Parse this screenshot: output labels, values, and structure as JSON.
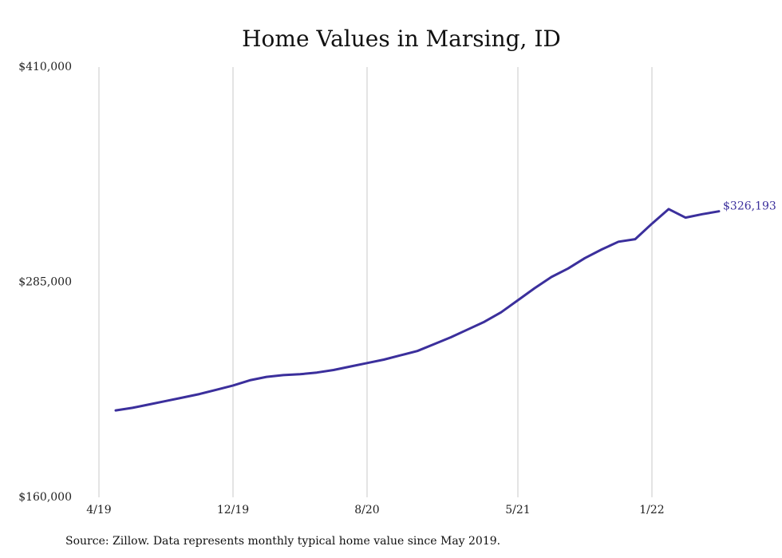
{
  "chart_data": {
    "type": "line",
    "title": "Home Values in Marsing, ID",
    "xlabel": "",
    "ylabel": "",
    "ylim": [
      160000,
      410000
    ],
    "y_ticks": [
      "$410,000",
      "$285,000",
      "$160,000"
    ],
    "y_tick_values": [
      410000,
      285000,
      160000
    ],
    "x_ticks": [
      "4/19",
      "12/19",
      "8/20",
      "5/21",
      "1/22"
    ],
    "x_tick_dates": [
      "2019-04",
      "2019-12",
      "2020-08",
      "2021-05",
      "2022-01"
    ],
    "grid": "vertical",
    "series": [
      {
        "color": "#3b2f9c",
        "x": [
          "2019-05",
          "2019-06",
          "2019-07",
          "2019-08",
          "2019-09",
          "2019-10",
          "2019-11",
          "2019-12",
          "2020-01",
          "2020-02",
          "2020-03",
          "2020-04",
          "2020-05",
          "2020-06",
          "2020-07",
          "2020-08",
          "2020-09",
          "2020-10",
          "2020-11",
          "2020-12",
          "2021-01",
          "2021-02",
          "2021-03",
          "2021-04",
          "2021-05",
          "2021-06",
          "2021-07",
          "2021-08",
          "2021-09",
          "2021-10",
          "2021-11",
          "2021-12",
          "2022-01",
          "2022-02",
          "2022-03",
          "2022-04",
          "2022-05"
        ],
        "values": [
          210500,
          212000,
          214000,
          216000,
          218000,
          220000,
          222500,
          225000,
          228000,
          230000,
          231000,
          231500,
          232500,
          234000,
          236000,
          238000,
          240000,
          242500,
          245000,
          249000,
          253000,
          257500,
          262000,
          267500,
          274500,
          281500,
          288000,
          293000,
          299000,
          304000,
          308500,
          310000,
          319000,
          327500,
          322500,
          324500,
          326193
        ]
      }
    ],
    "end_label": "$326,193",
    "source": "Source: Zillow. Data represents monthly typical home value since May 2019."
  }
}
